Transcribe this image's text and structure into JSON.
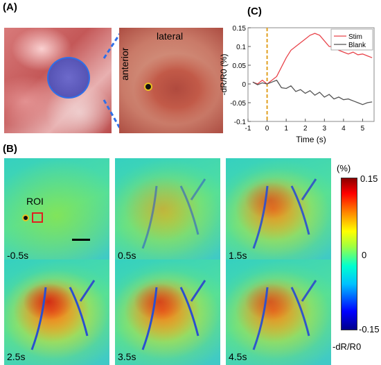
{
  "panels": {
    "a_label": "(A)",
    "b_label": "(B)",
    "c_label": "(C)"
  },
  "panel_a": {
    "anterior": "anterior",
    "lateral": "lateral"
  },
  "panel_b": {
    "roi_label": "ROI",
    "frames": [
      {
        "time": "-0.5s",
        "intensity": 0.0
      },
      {
        "time": "0.5s",
        "intensity": 0.35
      },
      {
        "time": "1.5s",
        "intensity": 0.7
      },
      {
        "time": "2.5s",
        "intensity": 1.0
      },
      {
        "time": "3.5s",
        "intensity": 0.85
      },
      {
        "time": "4.5s",
        "intensity": 0.75
      }
    ],
    "colorbar": {
      "unit": "(%)",
      "max": "0.15",
      "mid": "0",
      "min": "-0.15",
      "quantity": "-dR/R0",
      "colors": [
        "#00008b",
        "#0000ff",
        "#00c0ff",
        "#00ffd0",
        "#a0ff40",
        "#ffff00",
        "#ff8000",
        "#ff0000",
        "#8b0000"
      ]
    }
  },
  "chart_data": {
    "type": "line",
    "xlabel": "Time (s)",
    "ylabel": "-dR/R0 (%)",
    "xlim": [
      -1,
      5.6
    ],
    "ylim": [
      -0.1,
      0.15
    ],
    "xticks": [
      -1,
      0,
      1,
      2,
      3,
      4,
      5
    ],
    "xtick_labels": [
      "-1",
      "0",
      "1",
      "2",
      "3",
      "4",
      "5"
    ],
    "yticks": [
      -0.1,
      -0.05,
      0,
      0.05,
      0.1,
      0.15
    ],
    "ytick_labels": [
      "-0.1",
      "-0.05",
      "0",
      "0.05",
      "0.1",
      "0.15"
    ],
    "stim_marker_x": 0,
    "legend_position": "top-right",
    "series": [
      {
        "name": "Stim",
        "color": "#e8434a",
        "x": [
          -0.75,
          -0.5,
          -0.25,
          0,
          0.25,
          0.5,
          0.75,
          1,
          1.25,
          1.5,
          1.75,
          2,
          2.25,
          2.5,
          2.75,
          3,
          3.25,
          3.5,
          3.75,
          4,
          4.25,
          4.5,
          4.75,
          5,
          5.25,
          5.5
        ],
        "y": [
          0.005,
          0.0,
          0.01,
          0.0,
          0.01,
          0.02,
          0.045,
          0.07,
          0.09,
          0.1,
          0.11,
          0.12,
          0.13,
          0.135,
          0.13,
          0.115,
          0.1,
          0.1,
          0.09,
          0.085,
          0.08,
          0.085,
          0.078,
          0.08,
          0.075,
          0.07
        ]
      },
      {
        "name": "Blank",
        "color": "#555555",
        "x": [
          -0.75,
          -0.5,
          -0.25,
          0,
          0.25,
          0.5,
          0.75,
          1,
          1.25,
          1.5,
          1.75,
          2,
          2.25,
          2.5,
          2.75,
          3,
          3.25,
          3.5,
          3.75,
          4,
          4.25,
          4.5,
          4.75,
          5,
          5.25,
          5.5
        ],
        "y": [
          0.005,
          -0.002,
          0.003,
          0.0,
          0.005,
          0.01,
          -0.01,
          -0.012,
          -0.005,
          -0.02,
          -0.015,
          -0.025,
          -0.018,
          -0.03,
          -0.022,
          -0.035,
          -0.028,
          -0.04,
          -0.035,
          -0.042,
          -0.04,
          -0.045,
          -0.05,
          -0.055,
          -0.05,
          -0.048
        ]
      }
    ]
  }
}
